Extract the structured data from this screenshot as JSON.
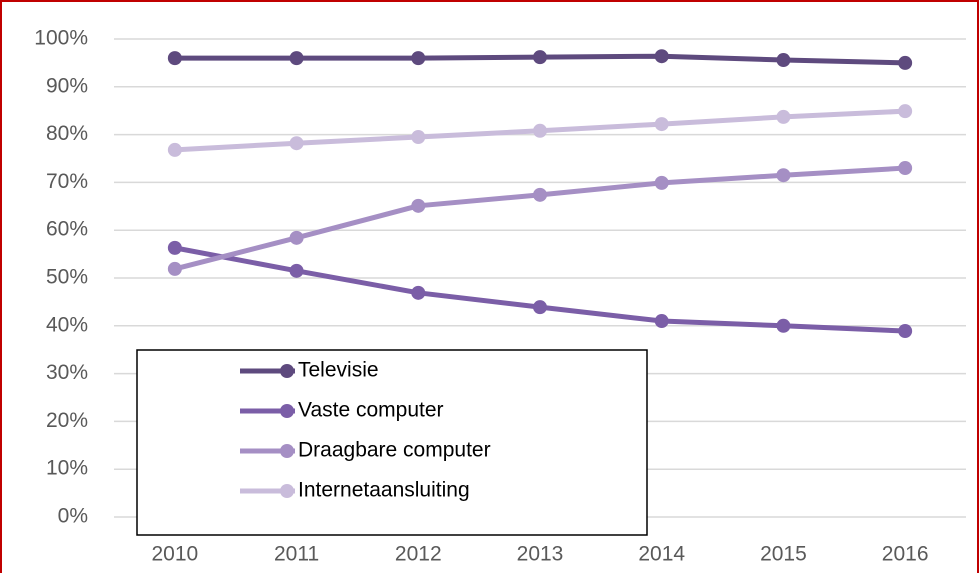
{
  "chart_data": {
    "type": "line",
    "categories": [
      "2010",
      "2011",
      "2012",
      "2013",
      "2014",
      "2015",
      "2016"
    ],
    "series": [
      {
        "name": "Televisie",
        "color": "#5e4a7e",
        "values": [
          96,
          96,
          96,
          96.2,
          96.4,
          95.6,
          95
        ]
      },
      {
        "name": "Vaste computer",
        "color": "#7b5ea7",
        "values": [
          56.3,
          51.5,
          46.9,
          43.9,
          41,
          40,
          38.9
        ]
      },
      {
        "name": "Draagbare computer",
        "color": "#a58fc4",
        "values": [
          51.9,
          58.4,
          65.1,
          67.4,
          69.9,
          71.5,
          73
        ]
      },
      {
        "name": "Internetaansluiting",
        "color": "#c9bcdb",
        "values": [
          76.8,
          78.2,
          79.5,
          80.8,
          82.2,
          83.7,
          84.9
        ]
      }
    ],
    "ylim": [
      0,
      100
    ],
    "yticks": [
      {
        "value": 0,
        "label": "0%"
      },
      {
        "value": 10,
        "label": "10%"
      },
      {
        "value": 20,
        "label": "20%"
      },
      {
        "value": 30,
        "label": "30%"
      },
      {
        "value": 40,
        "label": "40%"
      },
      {
        "value": 50,
        "label": "50%"
      },
      {
        "value": 60,
        "label": "60%"
      },
      {
        "value": 70,
        "label": "70%"
      },
      {
        "value": 80,
        "label": "80%"
      },
      {
        "value": 90,
        "label": "90%"
      },
      {
        "value": 100,
        "label": "100%"
      }
    ],
    "grid": true,
    "legend": "lower left"
  }
}
